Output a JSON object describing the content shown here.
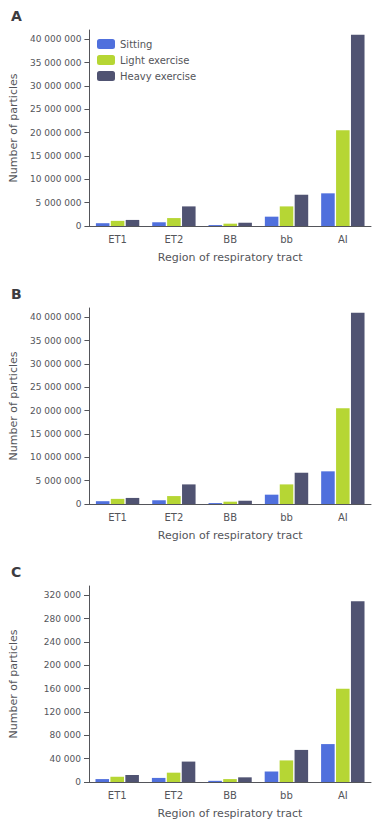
{
  "chart_data": [
    {
      "type": "bar",
      "title": "A",
      "categories": [
        "ET1",
        "ET2",
        "BB",
        "bb",
        "AI"
      ],
      "series": [
        {
          "name": "Sitting",
          "values": [
            600000,
            800000,
            200000,
            2000000,
            7000000
          ]
        },
        {
          "name": "Light exercise",
          "values": [
            1100000,
            1700000,
            500000,
            4200000,
            20500000
          ]
        },
        {
          "name": "Heavy exercise",
          "values": [
            1300000,
            4200000,
            700000,
            6700000,
            41000000
          ]
        }
      ],
      "xlabel": "Region of respiratory tract",
      "ylabel": "Number of particles",
      "ylim": [
        0,
        42000000
      ],
      "yticks": [
        0,
        {
          "value": 5000000,
          "label": "5 000 000"
        },
        {
          "value": 10000000,
          "label": "10 000 000"
        },
        {
          "value": 15000000,
          "label": "15 000 000"
        },
        {
          "value": 20000000,
          "label": "20 000 000"
        },
        {
          "value": 25000000,
          "label": "25 000 000"
        },
        {
          "value": 30000000,
          "label": "30 000 000"
        },
        {
          "value": 35000000,
          "label": "35 000 000"
        },
        {
          "value": 40000000,
          "label": "40 000 000"
        }
      ],
      "grid": false,
      "legend": "upper left"
    },
    {
      "type": "bar",
      "title": "B",
      "categories": [
        "ET1",
        "ET2",
        "BB",
        "bb",
        "AI"
      ],
      "series": [
        {
          "name": "Sitting",
          "values": [
            600000,
            800000,
            200000,
            2000000,
            7000000
          ]
        },
        {
          "name": "Light exercise",
          "values": [
            1100000,
            1700000,
            500000,
            4200000,
            20500000
          ]
        },
        {
          "name": "Heavy exercise",
          "values": [
            1300000,
            4200000,
            700000,
            6700000,
            41000000
          ]
        }
      ],
      "xlabel": "Region of respiratory tract",
      "ylabel": "Number of particles",
      "ylim": [
        0,
        42000000
      ],
      "yticks": [
        0,
        {
          "value": 5000000,
          "label": "5 000 000"
        },
        {
          "value": 10000000,
          "label": "10 000 000"
        },
        {
          "value": 15000000,
          "label": "15 000 000"
        },
        {
          "value": 20000000,
          "label": "20 000 000"
        },
        {
          "value": 25000000,
          "label": "25 000 000"
        },
        {
          "value": 30000000,
          "label": "30 000 000"
        },
        {
          "value": 35000000,
          "label": "35 000 000"
        },
        {
          "value": 40000000,
          "label": "40 000 000"
        }
      ],
      "grid": false
    },
    {
      "type": "bar",
      "title": "C",
      "categories": [
        "ET1",
        "ET2",
        "BB",
        "bb",
        "AI"
      ],
      "series": [
        {
          "name": "Sitting",
          "values": [
            5000,
            7000,
            2000,
            18000,
            65000
          ]
        },
        {
          "name": "Light exercise",
          "values": [
            9000,
            16000,
            5000,
            37000,
            160000
          ]
        },
        {
          "name": "Heavy exercise",
          "values": [
            12000,
            35000,
            8000,
            55000,
            310000
          ]
        }
      ],
      "xlabel": "Region of respiratory tract",
      "ylabel": "Number of particles",
      "ylim": [
        0,
        336000
      ],
      "yticks": [
        0,
        {
          "value": 40000,
          "label": "40 000"
        },
        {
          "value": 80000,
          "label": "80 000"
        },
        {
          "value": 120000,
          "label": "120 000"
        },
        {
          "value": 160000,
          "label": "160 000"
        },
        {
          "value": 200000,
          "label": "200 000"
        },
        {
          "value": 240000,
          "label": "240 000"
        },
        {
          "value": 280000,
          "label": "280 000"
        },
        {
          "value": 320000,
          "label": "320 000"
        }
      ],
      "grid": false
    }
  ]
}
